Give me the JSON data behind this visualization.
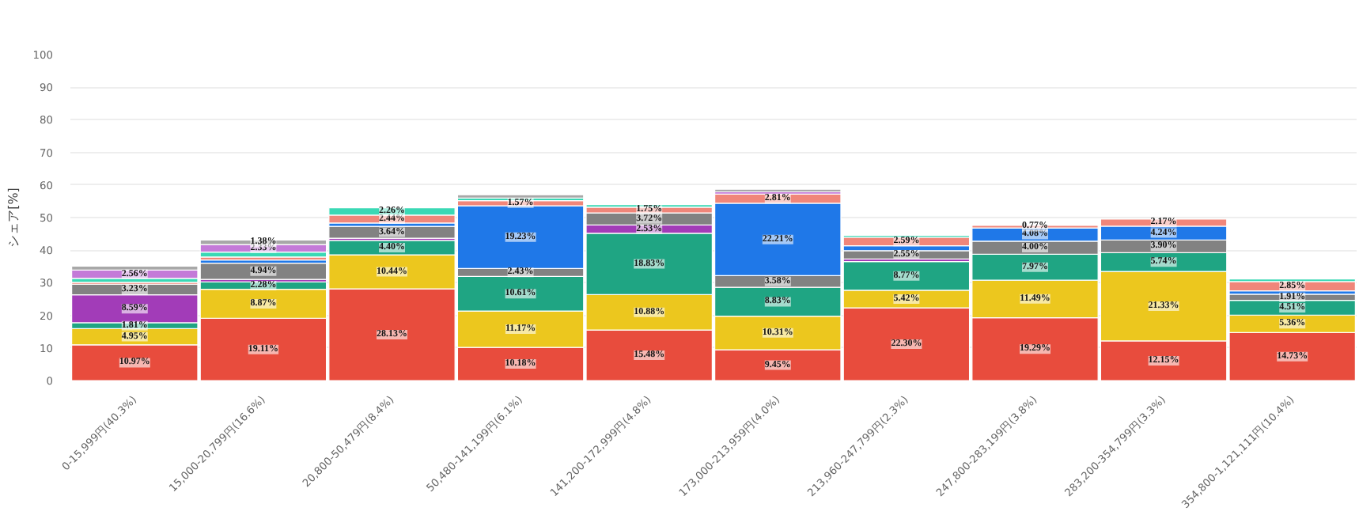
{
  "chart_data": {
    "type": "bar",
    "stacked": true,
    "ylabel": "シェア[%]",
    "categories": [
      "0-15,999円(40.3%)",
      "15,000-20,799円(16.6%)",
      "20,800-50,479円(8.4%)",
      "50,480-141,199円(6.1%)",
      "141,200-172,999円(4.8%)",
      "173,000-213,959円(4.0%)",
      "213,960-247,799円(2.3%)",
      "247,800-283,199円(3.8%)",
      "283,200-354,799円(3.3%)",
      "354,800-1,121,111円(10.4%)"
    ],
    "ylim": [
      0,
      100
    ],
    "yticks": [
      0,
      10,
      20,
      30,
      40,
      50,
      60,
      70,
      80,
      90,
      100
    ],
    "grid": "y",
    "series": [
      {
        "color": "#e84c3d",
        "values": [
          10.97,
          19.11,
          28.13,
          10.18,
          15.48,
          9.45,
          22.3,
          19.29,
          12.15,
          14.73
        ],
        "value_labels": [
          "10.97%",
          "19.11%",
          "28.13%",
          "10.18%",
          "15.48%",
          "9.45%",
          "22.30%",
          "19.29%",
          "12.15%",
          "14.73%"
        ]
      },
      {
        "color": "#ecc71e",
        "values": [
          4.95,
          8.87,
          10.44,
          11.17,
          10.88,
          10.31,
          5.42,
          11.49,
          21.33,
          5.36
        ],
        "value_labels": [
          "4.95%",
          "8.87%",
          "10.44%",
          "11.17%",
          "10.88%",
          "10.31%",
          "5.42%",
          "11.49%",
          "21.33%",
          "5.36%"
        ]
      },
      {
        "color": "#1fa583",
        "values": [
          1.81,
          2.28,
          4.4,
          10.61,
          18.83,
          8.83,
          8.77,
          7.97,
          5.74,
          4.51
        ],
        "value_labels": [
          "1.81%",
          "2.28%",
          "4.40%",
          "10.61%",
          "18.83%",
          "8.83%",
          "8.77%",
          "7.97%",
          "5.74%",
          "4.51%"
        ]
      },
      {
        "color": "#a23cb8",
        "values": [
          8.59,
          0.8,
          0.7,
          null,
          2.53,
          null,
          0.8,
          null,
          null,
          null
        ],
        "value_labels": [
          "8.59%",
          null,
          null,
          null,
          "2.53%",
          null,
          null,
          null,
          null,
          null
        ]
      },
      {
        "color": "#828282",
        "values": [
          3.23,
          4.94,
          3.64,
          2.43,
          3.72,
          3.58,
          2.55,
          4.0,
          3.9,
          1.91
        ],
        "value_labels": [
          "3.23%",
          "4.94%",
          "3.64%",
          "2.43%",
          "3.72%",
          "3.58%",
          "2.55%",
          "4.00%",
          "3.90%",
          "1.91%"
        ]
      },
      {
        "color": "#1f78e8",
        "values": [
          null,
          1.0,
          1.0,
          19.23,
          null,
          22.21,
          1.5,
          4.08,
          4.24,
          1.0
        ],
        "value_labels": [
          null,
          null,
          null,
          "19.23%",
          null,
          "22.21%",
          null,
          "4.08%",
          "4.24%",
          null
        ]
      },
      {
        "color": "#f0867a",
        "values": [
          0.6,
          0.9,
          2.44,
          1.57,
          1.75,
          2.81,
          2.59,
          0.77,
          2.17,
          2.85
        ],
        "value_labels": [
          null,
          null,
          "2.44%",
          "1.57%",
          "1.75%",
          "2.81%",
          "2.59%",
          "0.77%",
          "2.17%",
          "2.85%"
        ]
      },
      {
        "color": "#3ad8b5",
        "values": [
          1.2,
          1.5,
          2.26,
          0.8,
          0.8,
          null,
          0.6,
          null,
          null,
          0.8
        ],
        "value_labels": [
          null,
          null,
          "2.26%",
          null,
          null,
          null,
          null,
          null,
          null,
          null
        ]
      },
      {
        "color": "#c47ad8",
        "values": [
          2.56,
          2.33,
          null,
          null,
          null,
          0.7,
          null,
          null,
          null,
          null
        ],
        "value_labels": [
          "2.56%",
          "2.33%",
          null,
          null,
          null,
          null,
          null,
          null,
          null,
          null
        ]
      },
      {
        "color": "#a8a8a8",
        "values": [
          1.2,
          1.38,
          null,
          1.0,
          null,
          0.8,
          null,
          null,
          null,
          null
        ],
        "value_labels": [
          null,
          "1.38%",
          null,
          null,
          null,
          null,
          null,
          null,
          null,
          null
        ]
      }
    ]
  }
}
